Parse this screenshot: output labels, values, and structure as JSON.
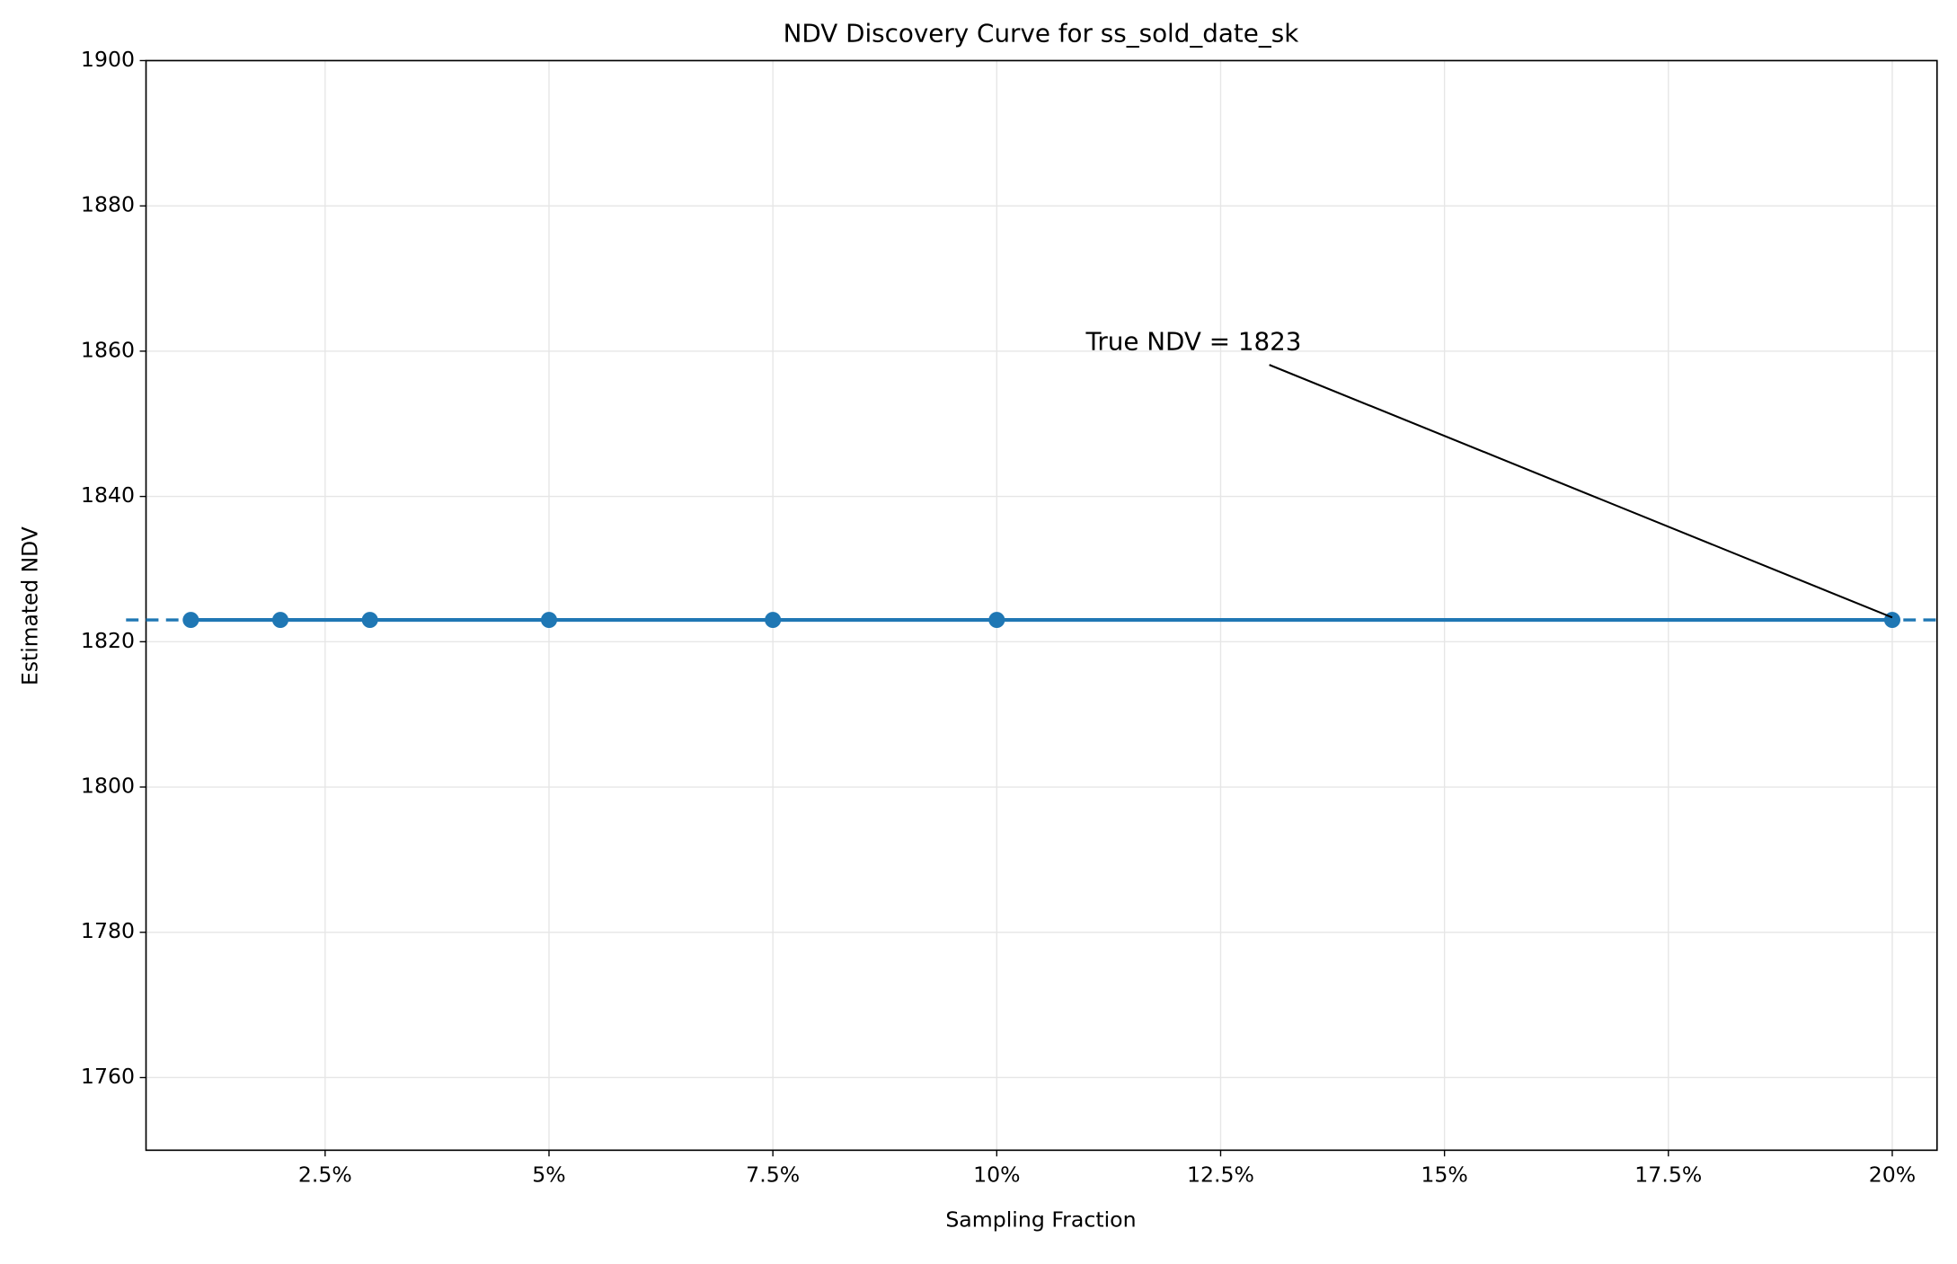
{
  "chart_data": {
    "type": "line",
    "title": "NDV Discovery Curve for ss_sold_date_sk",
    "x_label": "Sampling Fraction",
    "y_label": "Estimated NDV",
    "x": [
      1,
      2,
      3,
      5,
      7.5,
      10,
      20
    ],
    "values": [
      1823,
      1823,
      1823,
      1823,
      1823,
      1823,
      1823
    ],
    "color": "#1f77b4",
    "xlim": [
      0.5,
      20.5
    ],
    "xticks": [
      {
        "value": 2.5,
        "label": "2.5%"
      },
      {
        "value": 5,
        "label": "5%"
      },
      {
        "value": 7.5,
        "label": "7.5%"
      },
      {
        "value": 10,
        "label": "10%"
      },
      {
        "value": 12.5,
        "label": "12.5%"
      },
      {
        "value": 15,
        "label": "15%"
      },
      {
        "value": 17.5,
        "label": "17.5%"
      },
      {
        "value": 20,
        "label": "20%"
      }
    ],
    "ylim": [
      1750,
      1900
    ],
    "yticks": [
      1760,
      1780,
      1800,
      1820,
      1840,
      1860,
      1880,
      1900
    ],
    "grid": true,
    "reference_line": {
      "value": 1823,
      "style": "dashed"
    },
    "annotation": "True NDV = 1823"
  }
}
